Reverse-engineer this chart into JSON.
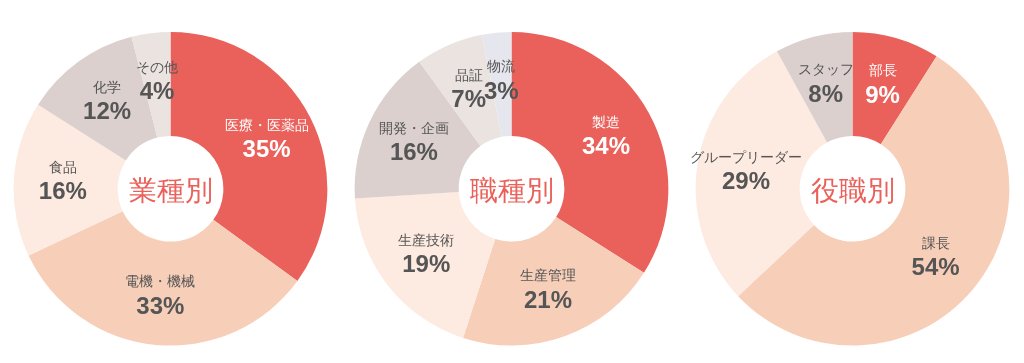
{
  "chart_data": [
    {
      "type": "donut",
      "title": "業種別",
      "categories": [
        "医療・医薬品",
        "電機・機械",
        "食品",
        "化学",
        "その他"
      ],
      "values": [
        35,
        33,
        16,
        12,
        4
      ],
      "value_labels": [
        "35%",
        "33%",
        "16%",
        "12%",
        "4%"
      ],
      "colors": [
        "#e9615a",
        "#f7cfb9",
        "#fdeae0",
        "#dbd0cd",
        "#ebe3df"
      ],
      "legend": false
    },
    {
      "type": "donut",
      "title": "職種別",
      "categories": [
        "製造",
        "生産管理",
        "生産技術",
        "開発・企画",
        "品証",
        "物流"
      ],
      "values": [
        34,
        21,
        19,
        16,
        7,
        3
      ],
      "value_labels": [
        "34%",
        "21%",
        "19%",
        "16%",
        "7%",
        "3%"
      ],
      "colors": [
        "#e9615a",
        "#f7cfb9",
        "#fdeae0",
        "#dbd0cd",
        "#ebe3df",
        "#e6e7ee"
      ],
      "legend": false
    },
    {
      "type": "donut",
      "title": "役職別",
      "categories": [
        "部長",
        "課長",
        "グループリーダー",
        "スタッフ"
      ],
      "values": [
        9,
        54,
        29,
        8
      ],
      "value_labels": [
        "9%",
        "54%",
        "29%",
        "8%"
      ],
      "colors": [
        "#e9615a",
        "#f7cfb9",
        "#fdeae0",
        "#dbd0cd"
      ],
      "legend": false
    }
  ]
}
